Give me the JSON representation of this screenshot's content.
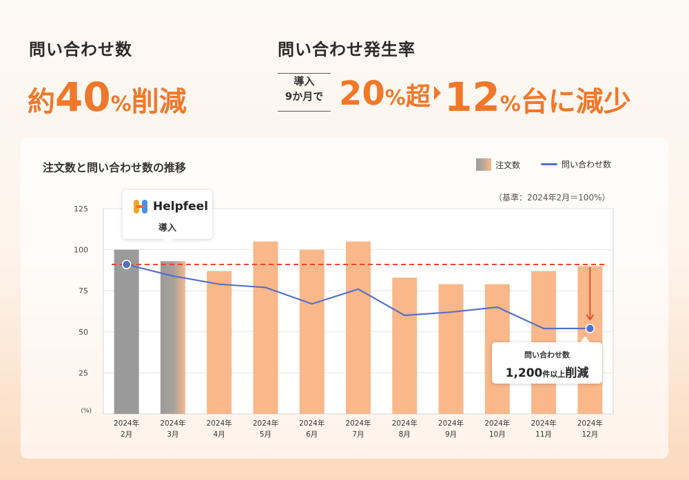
{
  "kpi1": {
    "label": "問い合わせ数",
    "prefix": "約",
    "value": "40",
    "unit": "%",
    "suffix": "削減"
  },
  "kpi2": {
    "label": "問い合わせ発生率",
    "period_line1": "導入",
    "period_line2": "9か月で",
    "from_value": "20",
    "from_unit": "%",
    "from_suffix": "超",
    "to_value": "12",
    "to_unit": "%",
    "to_suffix": "台に減少"
  },
  "legend": {
    "bar": "注文数",
    "line": "問い合わせ数"
  },
  "basis_note": "（基準：2024年2月＝100%）",
  "callout": {
    "brand": "Helpfeel",
    "text": "導入"
  },
  "reduction": {
    "line1": "問い合わせ数",
    "amount": "1,200",
    "unit": "件以上",
    "verb": "削減"
  },
  "colors": {
    "accent": "#f0782a",
    "bar_after": "#f9b78a",
    "bar_before": "#9a9a9a",
    "line": "#5470c6",
    "reference_line": "#e8452a"
  },
  "chart_data": {
    "type": "bar",
    "title": "注文数と問い合わせ数の推移",
    "y_unit_label": "(%)",
    "ylim": [
      0,
      125
    ],
    "yticks": [
      25,
      50,
      75,
      100,
      125
    ],
    "grid": true,
    "legend_position": "top-right",
    "categories": [
      [
        "2024年",
        "2月"
      ],
      [
        "2024年",
        "3月"
      ],
      [
        "2024年",
        "4月"
      ],
      [
        "2024年",
        "5月"
      ],
      [
        "2024年",
        "6月"
      ],
      [
        "2024年",
        "7月"
      ],
      [
        "2024年",
        "8月"
      ],
      [
        "2024年",
        "9月"
      ],
      [
        "2024年",
        "10月"
      ],
      [
        "2024年",
        "11月"
      ],
      [
        "2024年",
        "12月"
      ]
    ],
    "series": [
      {
        "name": "注文数",
        "kind": "bar",
        "values": [
          100,
          93,
          87,
          105,
          100,
          105,
          83,
          79,
          79,
          87,
          90
        ]
      },
      {
        "name": "問い合わせ数",
        "kind": "line",
        "values": [
          91,
          84,
          79,
          77,
          67,
          76,
          60,
          62,
          65,
          52,
          52
        ]
      }
    ],
    "reference_line": 91,
    "highlight_pre_introduction": [
      "2月",
      "3月"
    ]
  }
}
